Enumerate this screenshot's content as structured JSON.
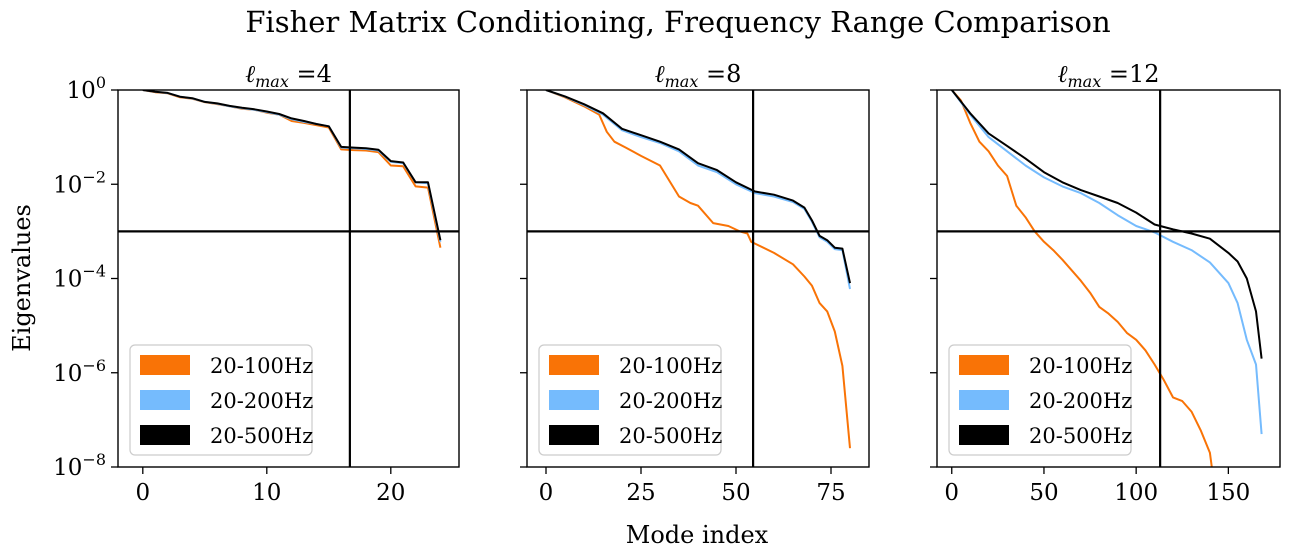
{
  "figure": {
    "title": "Fisher Matrix Conditioning, Frequency Range Comparison",
    "xlabel": "Mode index",
    "ylabel": "Eigenvalues"
  },
  "colors": {
    "20-100Hz": "#f97306",
    "20-200Hz": "#75bbfd",
    "20-500Hz": "#000000",
    "axes": "#000000"
  },
  "chart_data": [
    {
      "type": "line",
      "title": "ℓmax =4",
      "title_symbol": "ℓ",
      "title_sub": "max",
      "title_suffix": " =4",
      "xlim": [
        -2,
        25.5
      ],
      "ylim": [
        1e-08,
        1
      ],
      "yscale": "log",
      "xticks": [
        0,
        10,
        20
      ],
      "xtick_labels": [
        "0",
        "10",
        "20"
      ],
      "yticks": [
        1,
        0.01,
        0.0001,
        1e-06,
        1e-08
      ],
      "ytick_labels": [
        {
          "base": "10",
          "exp": "0"
        },
        {
          "base": "10",
          "exp": "−2"
        },
        {
          "base": "10",
          "exp": "−4"
        },
        {
          "base": "10",
          "exp": "−6"
        },
        {
          "base": "10",
          "exp": "−8"
        }
      ],
      "hline": 0.001,
      "vline": 16.7,
      "legend": "lower-left",
      "series": [
        {
          "name": "20-100Hz",
          "x": [
            0,
            1,
            2,
            3,
            4,
            5,
            6,
            7,
            8,
            9,
            10,
            11,
            12,
            13,
            14,
            15,
            16,
            17,
            18,
            19,
            20,
            21,
            22,
            23,
            24
          ],
          "y": [
            1.0,
            0.9,
            0.85,
            0.7,
            0.65,
            0.55,
            0.5,
            0.45,
            0.4,
            0.38,
            0.33,
            0.3,
            0.22,
            0.2,
            0.18,
            0.16,
            0.055,
            0.053,
            0.052,
            0.048,
            0.025,
            0.024,
            0.009,
            0.0085,
            0.00045
          ]
        },
        {
          "name": "20-200Hz",
          "x": [
            0,
            1,
            2,
            3,
            4,
            5,
            6,
            7,
            8,
            9,
            10,
            11,
            12,
            13,
            14,
            15,
            16,
            17,
            18,
            19,
            20,
            21,
            22,
            23,
            24
          ],
          "y": [
            1.0,
            0.92,
            0.86,
            0.72,
            0.66,
            0.56,
            0.51,
            0.45,
            0.41,
            0.38,
            0.34,
            0.3,
            0.24,
            0.21,
            0.19,
            0.17,
            0.06,
            0.058,
            0.056,
            0.052,
            0.03,
            0.028,
            0.011,
            0.0105,
            0.0006
          ]
        },
        {
          "name": "20-500Hz",
          "x": [
            0,
            1,
            2,
            3,
            4,
            5,
            6,
            7,
            8,
            9,
            10,
            11,
            12,
            13,
            14,
            15,
            16,
            17,
            18,
            19,
            20,
            21,
            22,
            23,
            24
          ],
          "y": [
            1.0,
            0.92,
            0.87,
            0.72,
            0.67,
            0.56,
            0.52,
            0.46,
            0.42,
            0.39,
            0.35,
            0.31,
            0.25,
            0.22,
            0.19,
            0.17,
            0.062,
            0.06,
            0.058,
            0.054,
            0.031,
            0.029,
            0.011,
            0.011,
            0.00065
          ]
        }
      ]
    },
    {
      "type": "line",
      "title": "ℓmax =8",
      "title_symbol": "ℓ",
      "title_sub": "max",
      "title_suffix": " =8",
      "xlim": [
        -5,
        85
      ],
      "ylim": [
        1e-08,
        1
      ],
      "yscale": "log",
      "xticks": [
        0,
        25,
        50,
        75
      ],
      "xtick_labels": [
        "0",
        "25",
        "50",
        "75"
      ],
      "yticks": [
        1,
        0.01,
        0.0001,
        1e-06,
        1e-08
      ],
      "hline": 0.001,
      "vline": 54.5,
      "legend": "lower-left",
      "series": [
        {
          "name": "20-100Hz",
          "x": [
            0,
            5,
            10,
            14,
            16,
            18,
            21,
            25,
            30,
            35,
            38,
            40,
            44,
            48,
            51,
            53,
            54,
            55,
            60,
            65,
            68,
            70,
            72,
            74,
            76,
            78,
            80
          ],
          "y": [
            1.0,
            0.7,
            0.45,
            0.3,
            0.13,
            0.08,
            0.06,
            0.04,
            0.025,
            0.0055,
            0.004,
            0.0035,
            0.0015,
            0.0013,
            0.001,
            0.0009,
            0.0006,
            0.00055,
            0.00035,
            0.0002,
            0.00011,
            7e-05,
            3e-05,
            2e-05,
            7.5e-06,
            1.4e-06,
            2.5e-08
          ]
        },
        {
          "name": "20-200Hz",
          "x": [
            0,
            5,
            10,
            15,
            20,
            25,
            30,
            35,
            40,
            45,
            50,
            55,
            60,
            65,
            68,
            70,
            72,
            74,
            76,
            78,
            80
          ],
          "y": [
            1.0,
            0.72,
            0.48,
            0.3,
            0.14,
            0.1,
            0.075,
            0.05,
            0.025,
            0.018,
            0.01,
            0.0065,
            0.0055,
            0.0042,
            0.003,
            0.0016,
            0.00075,
            0.0006,
            0.00042,
            0.0004,
            6e-05
          ]
        },
        {
          "name": "20-500Hz",
          "x": [
            0,
            5,
            10,
            15,
            20,
            25,
            30,
            35,
            40,
            45,
            50,
            55,
            60,
            65,
            68,
            70,
            72,
            74,
            76,
            78,
            80
          ],
          "y": [
            1.0,
            0.73,
            0.5,
            0.32,
            0.15,
            0.11,
            0.08,
            0.055,
            0.028,
            0.02,
            0.011,
            0.007,
            0.006,
            0.0045,
            0.0032,
            0.0017,
            0.0008,
            0.00065,
            0.00045,
            0.00043,
            8e-05
          ]
        }
      ]
    },
    {
      "type": "line",
      "title": "ℓmax =12",
      "title_symbol": "ℓ",
      "title_sub": "max",
      "title_suffix": " =12",
      "xlim": [
        -8,
        178
      ],
      "ylim": [
        1e-08,
        1
      ],
      "yscale": "log",
      "xticks": [
        0,
        50,
        100,
        150
      ],
      "xtick_labels": [
        "0",
        "50",
        "100",
        "150"
      ],
      "yticks": [
        1,
        0.01,
        0.0001,
        1e-06,
        1e-08
      ],
      "hline": 0.001,
      "vline": 113,
      "legend": "lower-left",
      "series": [
        {
          "name": "20-100Hz",
          "x": [
            0,
            5,
            10,
            15,
            20,
            25,
            30,
            35,
            40,
            45,
            50,
            55,
            60,
            65,
            70,
            75,
            80,
            85,
            90,
            95,
            100,
            105,
            110,
            115,
            120,
            125,
            130,
            135,
            140,
            141
          ],
          "y": [
            1.0,
            0.6,
            0.2,
            0.08,
            0.05,
            0.025,
            0.015,
            0.0035,
            0.002,
            0.001,
            0.0006,
            0.0004,
            0.00025,
            0.00015,
            9e-05,
            5e-05,
            2.5e-05,
            1.8e-05,
            1.2e-05,
            7e-06,
            5e-06,
            3e-06,
            1.5e-06,
            7e-07,
            3e-07,
            2.5e-07,
            1.5e-07,
            6e-08,
            2e-08,
            1e-08
          ]
        },
        {
          "name": "20-200Hz",
          "x": [
            0,
            10,
            20,
            30,
            40,
            50,
            60,
            70,
            80,
            90,
            100,
            110,
            120,
            130,
            140,
            150,
            155,
            160,
            165,
            168
          ],
          "y": [
            1.0,
            0.3,
            0.1,
            0.05,
            0.025,
            0.014,
            0.009,
            0.0065,
            0.004,
            0.0022,
            0.0013,
            0.00095,
            0.0006,
            0.0004,
            0.00022,
            8e-05,
            3e-05,
            5e-06,
            1.5e-06,
            5e-08
          ]
        },
        {
          "name": "20-500Hz",
          "x": [
            0,
            10,
            20,
            30,
            40,
            50,
            60,
            70,
            80,
            90,
            100,
            110,
            120,
            130,
            140,
            150,
            155,
            160,
            165,
            168
          ],
          "y": [
            1.0,
            0.32,
            0.12,
            0.065,
            0.035,
            0.018,
            0.011,
            0.0075,
            0.0055,
            0.004,
            0.0025,
            0.0014,
            0.0011,
            0.0009,
            0.0007,
            0.00035,
            0.00023,
            0.0001,
            2e-05,
            2e-06
          ]
        }
      ]
    }
  ]
}
